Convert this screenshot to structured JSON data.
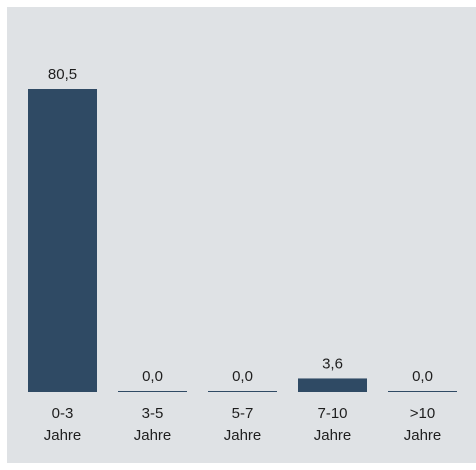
{
  "chart_data": {
    "type": "bar",
    "title": "",
    "xlabel": "",
    "ylabel": "",
    "categories": [
      [
        "0-3",
        "Jahre"
      ],
      [
        "3-5",
        "Jahre"
      ],
      [
        "5-7",
        "Jahre"
      ],
      [
        "7-10",
        "Jahre"
      ],
      [
        ">10",
        "Jahre"
      ]
    ],
    "values": [
      80.5,
      0.0,
      0.0,
      3.6,
      0.0
    ],
    "value_labels": [
      "80,5",
      "0,0",
      "0,0",
      "3,6",
      "0,0"
    ],
    "ylim": [
      0,
      80.5
    ],
    "grid": false,
    "legend": "none",
    "colors": {
      "bar": "#2f4a64",
      "background": "#dfe2e5",
      "text": "#1e1e1e"
    }
  }
}
